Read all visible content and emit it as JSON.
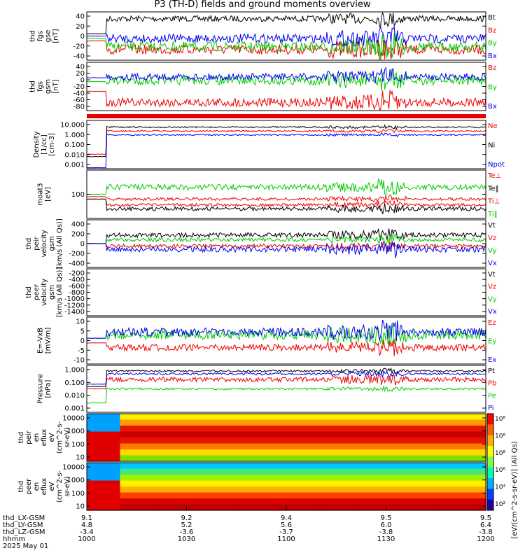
{
  "title": "P3 (TH-D) fields and ground moments overview",
  "chart_data": [
    {
      "type": "line",
      "id": "fgs_gse",
      "ylabel": [
        "thd",
        "fgs",
        "gse",
        "[nT]"
      ],
      "ticks": [
        "40",
        "20",
        "0",
        "-20",
        "-40"
      ],
      "legend": [
        {
          "name": "Bt",
          "color": "#000000"
        },
        {
          "name": "Bz",
          "color": "#ee0000"
        },
        {
          "name": "By",
          "color": "#00cc00"
        },
        {
          "name": "Bx",
          "color": "#0000ee"
        }
      ]
    },
    {
      "type": "line",
      "id": "fgs_gsm",
      "ylabel": [
        "thd",
        "fgs",
        "gsm",
        "[nT]"
      ],
      "ticks": [
        "40",
        "20",
        "0",
        "-20",
        "-40",
        "-60",
        "-80"
      ],
      "legend": [
        {
          "name": "Bz",
          "color": "#ee0000"
        },
        {
          "name": "By",
          "color": "#00cc00"
        },
        {
          "name": "Bx",
          "color": "#0000ee"
        }
      ]
    },
    {
      "type": "bar",
      "id": "redbar"
    },
    {
      "type": "line",
      "id": "density",
      "ylabel": [
        "Density",
        "[1/cc]",
        "[cm-3]"
      ],
      "ticks": [
        "10.000",
        "1.000",
        "0.100",
        "0.010",
        "0.001"
      ],
      "legend": [
        {
          "name": "Ne",
          "color": "#ee0000"
        },
        {
          "name": "Ni",
          "color": "#000000"
        },
        {
          "name": "Npot",
          "color": "#0000ee"
        }
      ]
    },
    {
      "type": "line",
      "id": "temp",
      "ylabel": [
        "moat3",
        "[eV]"
      ],
      "ticks": [
        "100"
      ],
      "legend": [
        {
          "name": "Te⊥",
          "color": "#ee0000"
        },
        {
          "name": "Te‖",
          "color": "#000000"
        },
        {
          "name": "Ti⊥",
          "color": "#ee0000"
        },
        {
          "name": "Ti‖",
          "color": "#00cc00"
        }
      ]
    },
    {
      "type": "line",
      "id": "peir_vel",
      "ylabel": [
        "thd",
        "peir",
        "velocity",
        "gsm",
        "[km/s (All Qs)]"
      ],
      "ticks": [
        "400",
        "200",
        "0",
        "-200",
        "-400"
      ],
      "legend": [
        {
          "name": "Vt",
          "color": "#000000"
        },
        {
          "name": "Vz",
          "color": "#ee0000"
        },
        {
          "name": "Vy",
          "color": "#00cc00"
        },
        {
          "name": "Vx",
          "color": "#0000ee"
        }
      ]
    },
    {
      "type": "line",
      "id": "peer_vel",
      "ylabel": [
        "thd",
        "peer",
        "velocity",
        "gsm",
        "[km/s (All Qs)]"
      ],
      "ticks": [
        "-200",
        "-400",
        "-600",
        "-800",
        "-1000",
        "-1200",
        "-1400"
      ],
      "legend": [
        {
          "name": "Vt",
          "color": "#000000"
        },
        {
          "name": "Vz",
          "color": "#ee0000"
        },
        {
          "name": "Vy",
          "color": "#00cc00"
        },
        {
          "name": "Vx",
          "color": "#0000ee"
        }
      ]
    },
    {
      "type": "line",
      "id": "efield",
      "ylabel": [
        "E=-VxB",
        "[mV/m]"
      ],
      "ticks": [
        "10",
        "5",
        "0",
        "-5",
        "-10"
      ],
      "legend": [
        {
          "name": "Ez",
          "color": "#ee0000"
        },
        {
          "name": "Ey",
          "color": "#00cc00"
        },
        {
          "name": "Ex",
          "color": "#0000ee"
        }
      ]
    },
    {
      "type": "line",
      "id": "pressure",
      "ylabel": [
        "Pressure",
        "[nPa]"
      ],
      "ticks": [
        "1.000",
        "0.100",
        "0.010",
        "0.001"
      ],
      "legend": [
        {
          "name": "Pt",
          "color": "#000000"
        },
        {
          "name": "Pb",
          "color": "#ee0000"
        },
        {
          "name": "Pe",
          "color": "#00cc00"
        },
        {
          "name": "Pi",
          "color": "#0000ee"
        }
      ]
    },
    {
      "type": "heatmap",
      "id": "peir_en",
      "ylabel": [
        "thd",
        "peir",
        "en",
        "eflux",
        "eV",
        "(cm^2-s-",
        "sr-eV)"
      ],
      "ticks": [
        "10000",
        "1000",
        "100",
        "10"
      ]
    },
    {
      "type": "heatmap",
      "id": "peer_en",
      "ylabel": [
        "thd",
        "peer",
        "en",
        "eflux",
        "eV",
        "(cm^2-s-",
        "sr-eV)"
      ],
      "ticks": [
        "10000",
        "1000",
        "100",
        "10"
      ]
    }
  ],
  "colorbar": {
    "label": "[eV/(cm^2-s-sr-eV)] (All Qs)",
    "ticks": [
      "10⁸",
      "10⁸",
      "10⁸",
      "10⁶",
      "10⁴",
      "10²"
    ]
  },
  "xaxis": {
    "ticks": [
      {
        "frac": 0.0,
        "lx": "9.1",
        "ly": "4.8",
        "lz": "-3.4",
        "hhmm": "1000"
      },
      {
        "frac": 0.25,
        "lx": "9.2",
        "ly": "5.2",
        "lz": "-3.6",
        "hhmm": "1030"
      },
      {
        "frac": 0.5,
        "lx": "9.4",
        "ly": "5.6",
        "lz": "-3.7",
        "hhmm": "1100"
      },
      {
        "frac": 0.75,
        "lx": "9.5",
        "ly": "6.0",
        "lz": "-3.8",
        "hhmm": "1130"
      },
      {
        "frac": 1.0,
        "lx": "9.5",
        "ly": "6.4",
        "lz": "-3.8",
        "hhmm": "1200"
      }
    ],
    "row_labels": [
      "thd_LX-GSM",
      "thd_LY-GSM",
      "thd_LZ-GSM",
      "hhmm",
      "2025 May 01"
    ]
  }
}
